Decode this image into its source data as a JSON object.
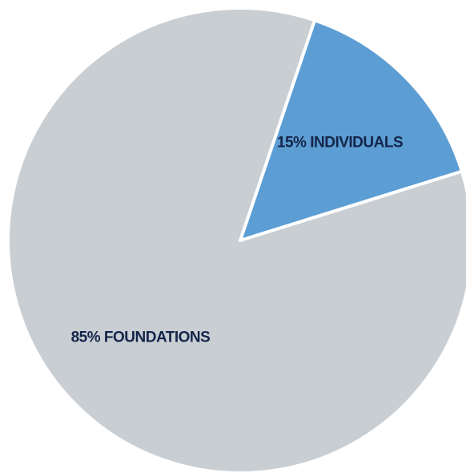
{
  "chart_data": {
    "type": "pie",
    "categories": [
      "FOUNDATIONS",
      "INDIVIDUALS"
    ],
    "values": [
      85,
      15
    ],
    "value_labels": [
      "85%",
      "15%"
    ],
    "colors": [
      "#c9ced3",
      "#5c9dd4"
    ]
  }
}
